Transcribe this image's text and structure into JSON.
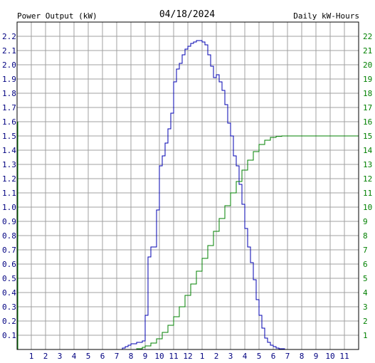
{
  "chart_data": {
    "type": "line",
    "title": "04/18/2024",
    "left_axis_label": "Power Output (kW)",
    "right_axis_label": "Daily kW-Hours",
    "colors": {
      "power": "#0000b0",
      "energy": "#008000",
      "left_axis_text": "#000080",
      "right_axis_text": "#008000",
      "grid": "#a0a0a0",
      "title_text": "#000000"
    },
    "grid": true,
    "x_ticks": [
      "1",
      "2",
      "3",
      "4",
      "5",
      "6",
      "7",
      "8",
      "9",
      "10",
      "11",
      "12",
      "1",
      "2",
      "3",
      "4",
      "5",
      "6",
      "7",
      "8",
      "9",
      "10",
      "11"
    ],
    "x_range_hours": [
      0,
      24
    ],
    "y_left_ticks": [
      "0.1",
      "0.2",
      "0.3",
      "0.4",
      "0.5",
      "0.6",
      "0.7",
      "0.8",
      "0.9",
      "1.0",
      "1.1",
      "1.2",
      "1.3",
      "1.4",
      "1.5",
      "1.6",
      "1.7",
      "1.8",
      "1.9",
      "2.0",
      "2.1",
      "2.2"
    ],
    "y_left_range": [
      0,
      2.3
    ],
    "y_right_ticks": [
      "1",
      "2",
      "3",
      "4",
      "5",
      "6",
      "7",
      "8",
      "9",
      "10",
      "11",
      "12",
      "13",
      "14",
      "15",
      "16",
      "17",
      "18",
      "19",
      "20",
      "21",
      "22"
    ],
    "y_right_range": [
      0,
      23
    ],
    "series": [
      {
        "name": "Power Output (kW)",
        "axis": "left",
        "points": [
          [
            0,
            0
          ],
          [
            7.2,
            0
          ],
          [
            7.4,
            0.01
          ],
          [
            7.6,
            0.02
          ],
          [
            7.8,
            0.03
          ],
          [
            8.0,
            0.04
          ],
          [
            8.4,
            0.05
          ],
          [
            8.8,
            0.06
          ],
          [
            9.0,
            0.24
          ],
          [
            9.2,
            0.65
          ],
          [
            9.4,
            0.72
          ],
          [
            9.8,
            0.98
          ],
          [
            10.0,
            1.29
          ],
          [
            10.2,
            1.36
          ],
          [
            10.4,
            1.45
          ],
          [
            10.6,
            1.55
          ],
          [
            10.8,
            1.66
          ],
          [
            11.0,
            1.88
          ],
          [
            11.2,
            1.97
          ],
          [
            11.4,
            2.01
          ],
          [
            11.6,
            2.07
          ],
          [
            11.8,
            2.11
          ],
          [
            12.0,
            2.13
          ],
          [
            12.2,
            2.15
          ],
          [
            12.4,
            2.16
          ],
          [
            12.6,
            2.17
          ],
          [
            12.8,
            2.17
          ],
          [
            13.0,
            2.16
          ],
          [
            13.2,
            2.14
          ],
          [
            13.4,
            2.07
          ],
          [
            13.6,
            1.99
          ],
          [
            13.8,
            1.91
          ],
          [
            14.0,
            1.93
          ],
          [
            14.2,
            1.88
          ],
          [
            14.4,
            1.82
          ],
          [
            14.6,
            1.72
          ],
          [
            14.8,
            1.59
          ],
          [
            15.0,
            1.5
          ],
          [
            15.2,
            1.36
          ],
          [
            15.4,
            1.29
          ],
          [
            15.6,
            1.16
          ],
          [
            15.8,
            1.02
          ],
          [
            16.0,
            0.85
          ],
          [
            16.2,
            0.72
          ],
          [
            16.4,
            0.61
          ],
          [
            16.6,
            0.49
          ],
          [
            16.8,
            0.35
          ],
          [
            17.0,
            0.24
          ],
          [
            17.2,
            0.15
          ],
          [
            17.4,
            0.08
          ],
          [
            17.6,
            0.05
          ],
          [
            17.8,
            0.03
          ],
          [
            18.0,
            0.02
          ],
          [
            18.2,
            0.01
          ],
          [
            18.4,
            0.005
          ],
          [
            18.8,
            0
          ],
          [
            24,
            0
          ]
        ]
      },
      {
        "name": "Daily kW-Hours",
        "axis": "right",
        "points": [
          [
            0,
            0
          ],
          [
            7.8,
            0
          ],
          [
            8.4,
            0.05
          ],
          [
            8.8,
            0.15
          ],
          [
            9.0,
            0.25
          ],
          [
            9.4,
            0.45
          ],
          [
            9.8,
            0.75
          ],
          [
            10.2,
            1.2
          ],
          [
            10.6,
            1.7
          ],
          [
            11.0,
            2.3
          ],
          [
            11.4,
            3.0
          ],
          [
            11.8,
            3.8
          ],
          [
            12.2,
            4.6
          ],
          [
            12.6,
            5.5
          ],
          [
            13.0,
            6.4
          ],
          [
            13.4,
            7.3
          ],
          [
            13.8,
            8.3
          ],
          [
            14.2,
            9.2
          ],
          [
            14.6,
            10.1
          ],
          [
            15.0,
            11.0
          ],
          [
            15.4,
            11.8
          ],
          [
            15.8,
            12.6
          ],
          [
            16.2,
            13.3
          ],
          [
            16.6,
            13.9
          ],
          [
            17.0,
            14.4
          ],
          [
            17.4,
            14.7
          ],
          [
            17.8,
            14.9
          ],
          [
            18.2,
            14.97
          ],
          [
            18.6,
            15.0
          ],
          [
            24,
            15.0
          ]
        ]
      }
    ]
  }
}
